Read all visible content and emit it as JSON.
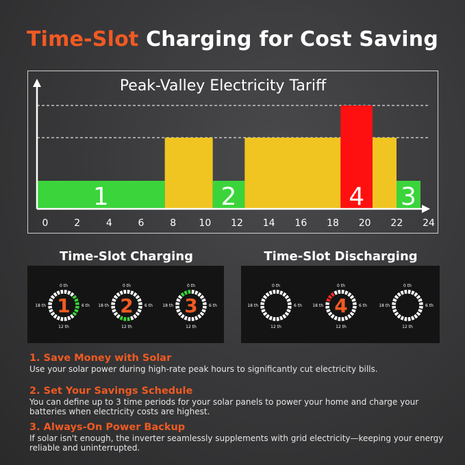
{
  "headline": {
    "accent": "Time-Slot",
    "rest": " Charging for Cost Saving"
  },
  "chart": {
    "title": "Peak-Valley Electricity Tariff",
    "colors": {
      "green": "#3bd43b",
      "yellow": "#f0c521",
      "red": "#ff1010"
    }
  },
  "chart_data": {
    "type": "bar",
    "title": "Peak-Valley Electricity Tariff",
    "xlabel": "",
    "ylabel": "",
    "x_ticks": [
      0,
      2,
      4,
      6,
      8,
      10,
      12,
      14,
      16,
      18,
      20,
      22,
      24
    ],
    "xlim": [
      0,
      24
    ],
    "levels": [
      "valley",
      "flat",
      "peak"
    ],
    "segments": [
      {
        "start": 0,
        "end": 8,
        "level": "valley",
        "color": "green",
        "label": "1"
      },
      {
        "start": 8,
        "end": 11,
        "level": "flat",
        "color": "yellow",
        "label": ""
      },
      {
        "start": 11,
        "end": 13,
        "level": "valley",
        "color": "green",
        "label": "2"
      },
      {
        "start": 13,
        "end": 19,
        "level": "flat",
        "color": "yellow",
        "label": ""
      },
      {
        "start": 19,
        "end": 21,
        "level": "peak",
        "color": "red",
        "label": "4"
      },
      {
        "start": 21,
        "end": 22.5,
        "level": "flat",
        "color": "yellow",
        "label": ""
      },
      {
        "start": 22.5,
        "end": 24,
        "level": "valley",
        "color": "green",
        "label": "3"
      }
    ],
    "grid": "dashed lines at flat and peak levels"
  },
  "charging": {
    "title": "Time-Slot Charging",
    "dials": [
      {
        "number": "1",
        "active": "green",
        "labels": {
          "top": "0 th",
          "right": "6 th",
          "bottom": "12 th",
          "left": "18 th"
        }
      },
      {
        "number": "2",
        "active": "green",
        "labels": {
          "top": "0 th",
          "right": "6 th",
          "bottom": "12 th",
          "left": "18 th"
        }
      },
      {
        "number": "3",
        "active": "green",
        "labels": {
          "top": "0 th",
          "right": "6 th",
          "bottom": "12 th",
          "left": "18 th"
        }
      }
    ]
  },
  "discharging": {
    "title": "Time-Slot Discharging",
    "dials": [
      {
        "number": "",
        "labels": {
          "top": "0 th",
          "right": "6 th",
          "bottom": "12 th",
          "left": "18 th"
        }
      },
      {
        "number": "4",
        "active": "red",
        "labels": {
          "top": "0 th",
          "right": "6 th",
          "bottom": "12 th",
          "left": "18 th"
        }
      },
      {
        "number": "",
        "labels": {
          "top": "0 th",
          "right": "6 th",
          "bottom": "12 th",
          "left": "18 th"
        }
      }
    ]
  },
  "features": [
    {
      "title": "1. Save Money with Solar",
      "desc": "Use your solar power during high-rate peak hours to significantly cut electricity bills."
    },
    {
      "title": "2. Set Your Savings Schedule",
      "desc": "You can define up to 3 time periods for your solar panels to power your home and charge your batteries when electricity costs are highest."
    },
    {
      "title": "3. Always-On Power Backup",
      "desc": "If solar isn't enough, the inverter seamlessly supplements with grid electricity—keeping your energy reliable and uninterrupted."
    }
  ],
  "colors": {
    "accent": "#f15a22",
    "dial_green": "#3bd43b",
    "dial_red": "#ff2a2a"
  }
}
